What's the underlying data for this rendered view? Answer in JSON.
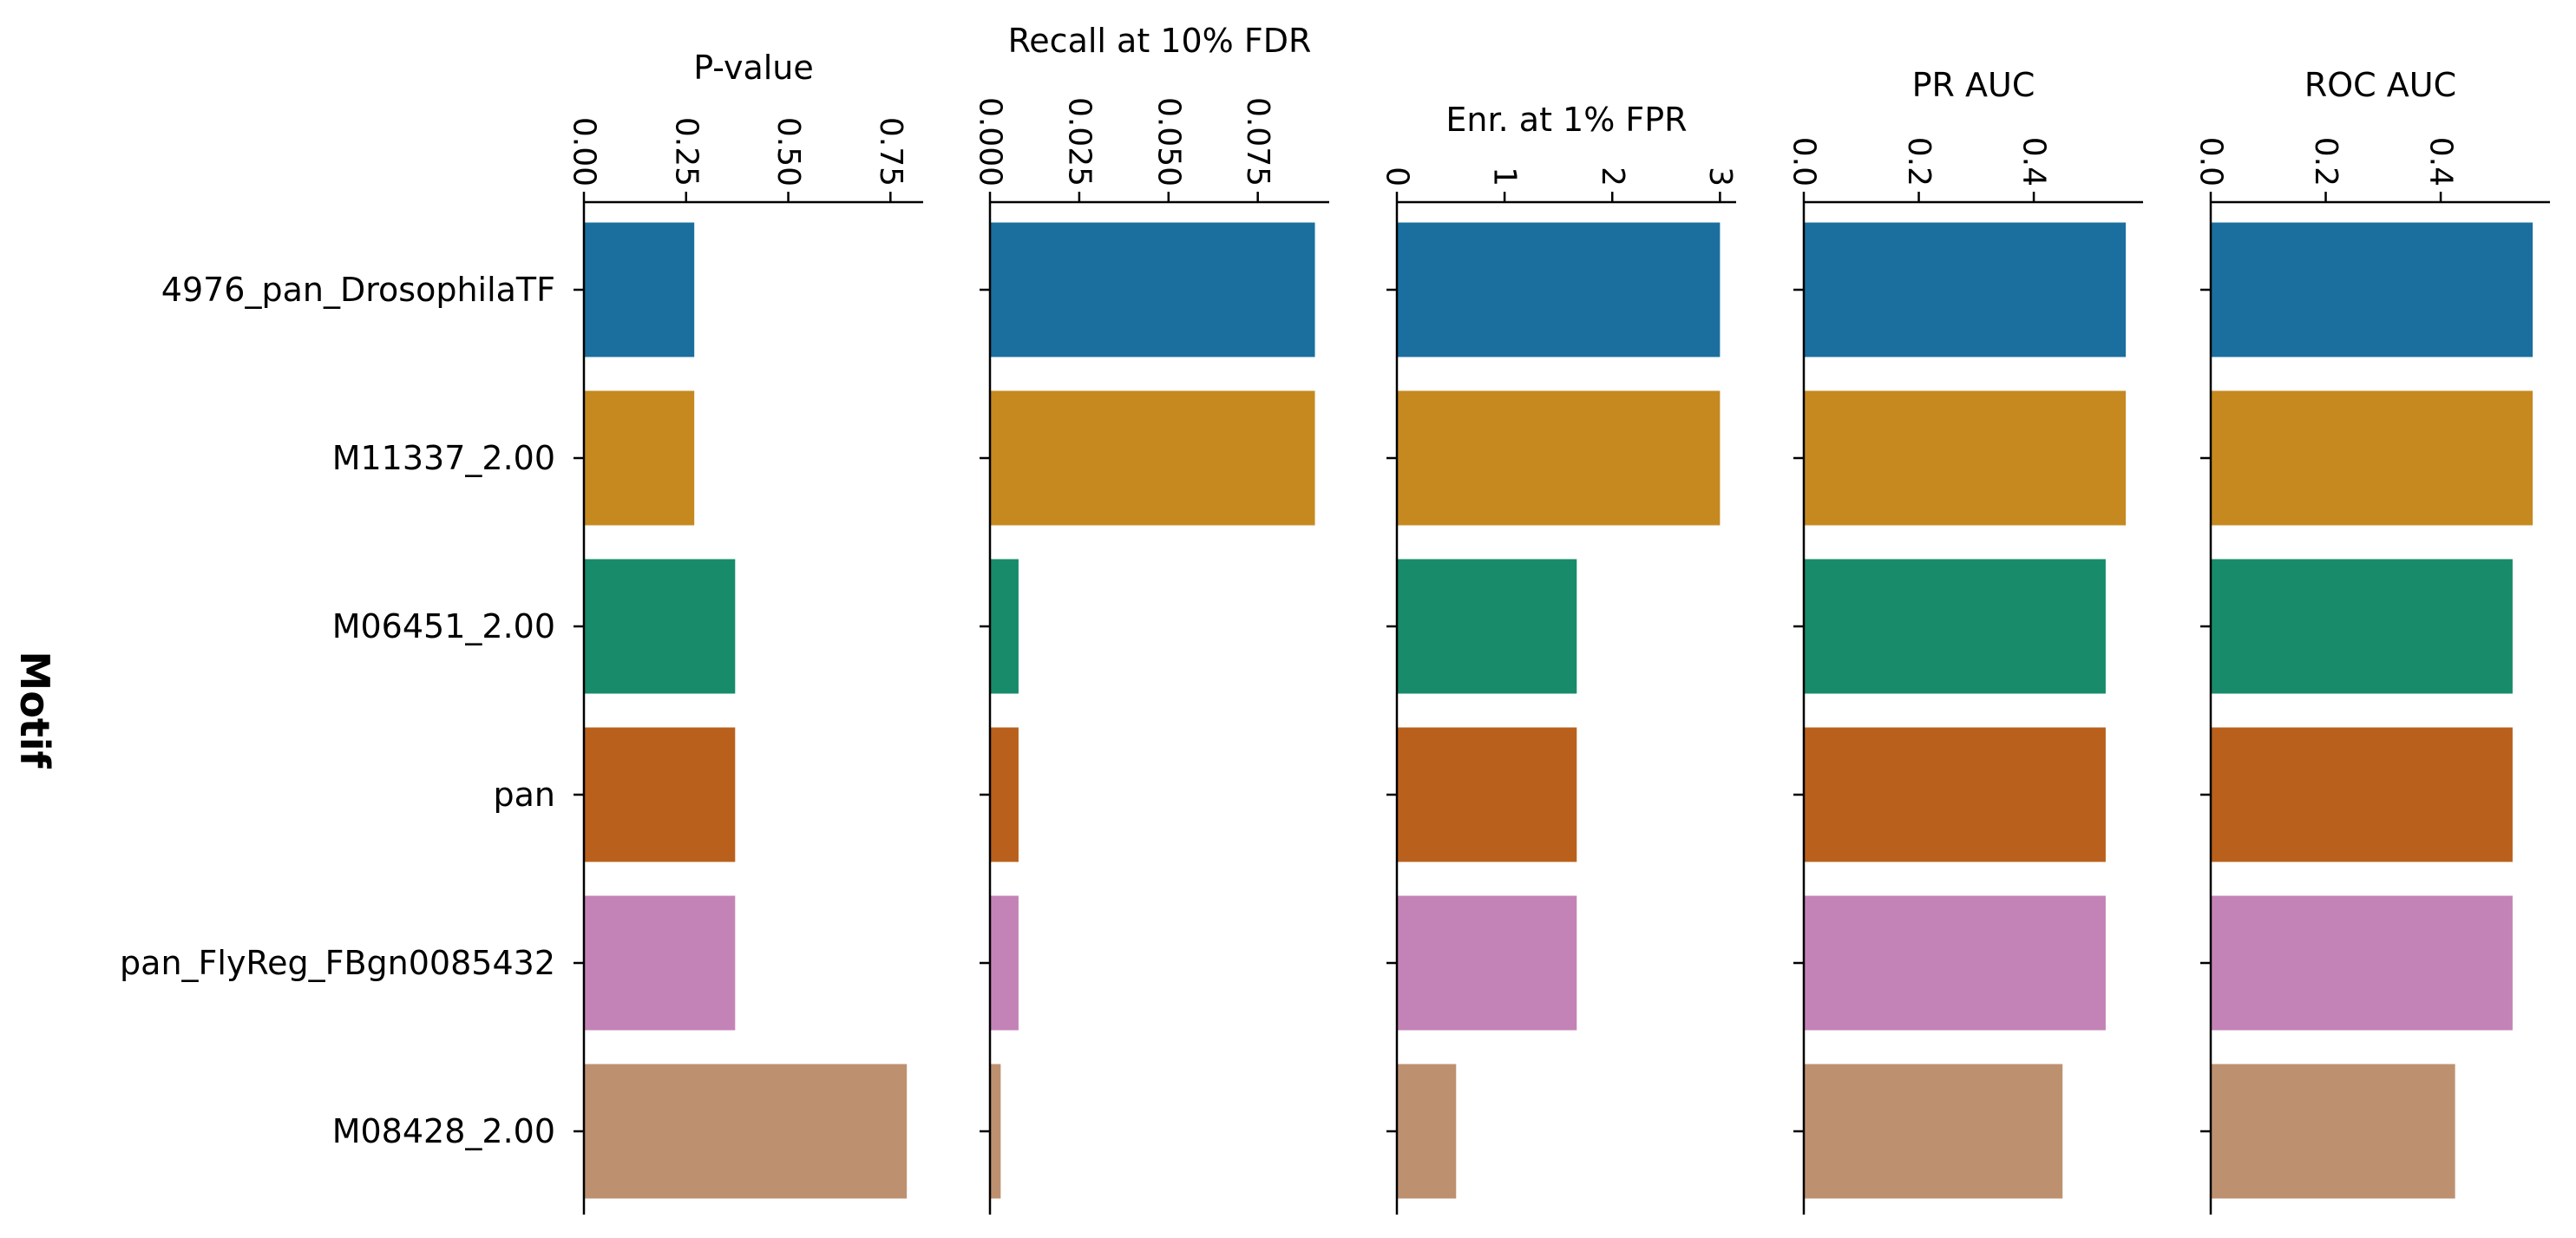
{
  "chart_data": {
    "type": "bar",
    "orientation": "horizontal",
    "ylabel": "Motif",
    "categories": [
      "4976_pan_DrosophilaTF",
      "M11337_2.00",
      "M06451_2.00",
      "pan",
      "pan_FlyReg_FBgn0085432",
      "M08428_2.00"
    ],
    "colors": [
      "#1a6f9e",
      "#c58920",
      "#178b6a",
      "#b9601c",
      "#c483b6",
      "#bd9170"
    ],
    "legend": "none",
    "grid": false,
    "panels": [
      {
        "title": "P-value",
        "values": [
          0.27,
          0.27,
          0.37,
          0.37,
          0.37,
          0.79
        ],
        "xlim": [
          0,
          0.83
        ],
        "ticks": [
          0,
          0.25,
          0.5,
          0.75
        ],
        "tick_labels": [
          "0.00",
          "0.25",
          "0.50",
          "0.75"
        ]
      },
      {
        "title": "Recall at 10% FDR",
        "values": [
          0.091,
          0.091,
          0.008,
          0.008,
          0.008,
          0.003
        ],
        "xlim": [
          0,
          0.095
        ],
        "ticks": [
          0,
          0.025,
          0.05,
          0.075
        ],
        "tick_labels": [
          "0.000",
          "0.025",
          "0.050",
          "0.075"
        ]
      },
      {
        "title": "Enr. at 1% FPR",
        "values": [
          3.0,
          3.0,
          1.67,
          1.67,
          1.67,
          0.55
        ],
        "xlim": [
          0,
          3.15
        ],
        "ticks": [
          0,
          1,
          2,
          3
        ],
        "tick_labels": [
          "0",
          "1",
          "2",
          "3"
        ]
      },
      {
        "title": "PR AUC",
        "values": [
          0.56,
          0.56,
          0.525,
          0.525,
          0.525,
          0.45
        ],
        "xlim": [
          0,
          0.59
        ],
        "ticks": [
          0,
          0.2,
          0.4
        ],
        "tick_labels": [
          "0.0",
          "0.2",
          "0.4"
        ]
      },
      {
        "title": "ROC AUC",
        "values": [
          0.56,
          0.56,
          0.525,
          0.525,
          0.525,
          0.425
        ],
        "xlim": [
          0,
          0.59
        ],
        "ticks": [
          0,
          0.2,
          0.4
        ],
        "tick_labels": [
          "0.0",
          "0.2",
          "0.4"
        ]
      }
    ]
  }
}
